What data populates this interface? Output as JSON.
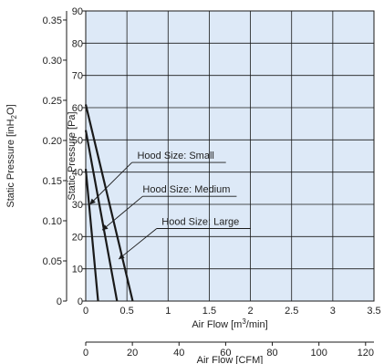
{
  "chart_data": {
    "type": "line",
    "plot_background": "#dde9f7",
    "line_color": "#1a1a1a",
    "grid": true,
    "x_primary": {
      "label_prefix": "Air Flow [m",
      "label_sup": "3",
      "label_suffix": "/min]",
      "range": [
        0,
        3.5
      ],
      "ticks": [
        0,
        0.5,
        1,
        1.5,
        2,
        2.5,
        3,
        3.5
      ],
      "tick_labels": [
        "0",
        "0.5",
        "1",
        "1.5",
        "2",
        "2.5",
        "3",
        "3.5"
      ]
    },
    "x_secondary": {
      "label": "Air Flow [CFM]",
      "range": [
        0,
        123.6
      ],
      "ticks": [
        0,
        20,
        40,
        60,
        80,
        100,
        120
      ],
      "tick_labels": [
        "0",
        "20",
        "40",
        "60",
        "80",
        "100",
        "120"
      ]
    },
    "y_primary": {
      "label": "Static Pressure [Pa]",
      "range": [
        0,
        90
      ],
      "ticks": [
        0,
        10,
        20,
        30,
        40,
        50,
        60,
        70,
        80,
        90
      ],
      "tick_labels": [
        "0",
        "10",
        "20",
        "30",
        "40",
        "50",
        "60",
        "70",
        "80",
        "90"
      ]
    },
    "y_secondary": {
      "label_prefix": "Static Pressure [inH",
      "label_sub": "2",
      "label_suffix": "O]",
      "range": [
        0,
        0.3613
      ],
      "ticks": [
        0,
        0.05,
        0.1,
        0.15,
        0.2,
        0.25,
        0.3,
        0.35
      ],
      "tick_labels": [
        "0",
        "0.05",
        "0.10",
        "0.15",
        "0.20",
        "0.25",
        "0.30",
        "0.35"
      ]
    },
    "series": [
      {
        "name": "Hood Size: Small",
        "x": [
          0,
          0.15
        ],
        "y": [
          41,
          0
        ],
        "label_pos": [
          0.65,
          43
        ],
        "leader_end": [
          0.05,
          30
        ]
      },
      {
        "name": "Hood Size: Medium",
        "x": [
          0,
          0.38
        ],
        "y": [
          53,
          0
        ],
        "label_pos": [
          0.78,
          32.5
        ],
        "leader_end": [
          0.2,
          22
        ]
      },
      {
        "name": "Hood Size: Large",
        "x": [
          0,
          0.57
        ],
        "y": [
          61,
          0
        ],
        "label_pos": [
          0.95,
          22.5
        ],
        "leader_end": [
          0.4,
          13
        ]
      }
    ]
  }
}
